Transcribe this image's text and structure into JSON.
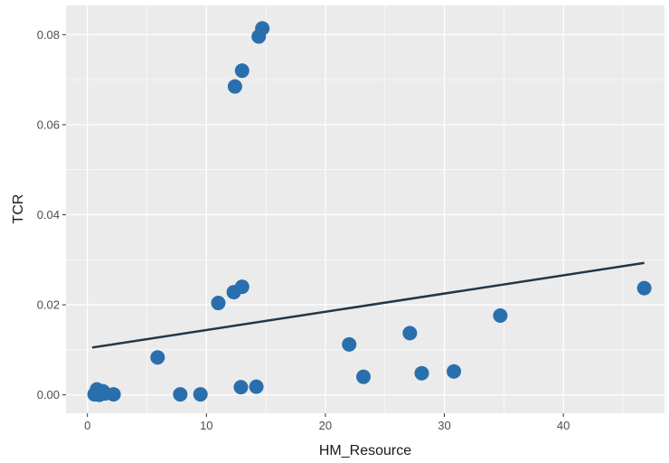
{
  "chart_data": {
    "type": "scatter",
    "title": "",
    "xlabel": "HM_Resource",
    "ylabel": "TCR",
    "xlim": [
      -1.8,
      48.5
    ],
    "ylim": [
      -0.0041,
      0.0865
    ],
    "x_ticks": [
      0,
      10,
      20,
      30,
      40
    ],
    "x_tick_labels": [
      "0",
      "10",
      "20",
      "30",
      "40"
    ],
    "y_ticks": [
      0,
      0.02,
      0.04,
      0.06,
      0.08
    ],
    "y_tick_labels": [
      "0.00",
      "0.02",
      "0.04",
      "0.06",
      "0.08"
    ],
    "grid": true,
    "legend": "none",
    "point_color": "#2a6fad",
    "line_color": "#233645",
    "panel_color": "#ebebeb",
    "points": [
      {
        "x": 0.6,
        "y": 0.0001
      },
      {
        "x": 0.8,
        "y": 0.0012
      },
      {
        "x": 1.0,
        "y": 0.0
      },
      {
        "x": 1.3,
        "y": 0.0008
      },
      {
        "x": 1.5,
        "y": 0.0003
      },
      {
        "x": 2.2,
        "y": 0.0001
      },
      {
        "x": 5.9,
        "y": 0.0083
      },
      {
        "x": 7.8,
        "y": 0.0001
      },
      {
        "x": 9.5,
        "y": 0.0001
      },
      {
        "x": 11.0,
        "y": 0.0204
      },
      {
        "x": 12.3,
        "y": 0.0228
      },
      {
        "x": 12.4,
        "y": 0.0685
      },
      {
        "x": 12.9,
        "y": 0.0017
      },
      {
        "x": 13.0,
        "y": 0.024
      },
      {
        "x": 13.0,
        "y": 0.072
      },
      {
        "x": 14.2,
        "y": 0.0018
      },
      {
        "x": 14.4,
        "y": 0.0796
      },
      {
        "x": 14.7,
        "y": 0.0814
      },
      {
        "x": 22.0,
        "y": 0.0112
      },
      {
        "x": 23.2,
        "y": 0.004
      },
      {
        "x": 27.1,
        "y": 0.0137
      },
      {
        "x": 28.1,
        "y": 0.0048
      },
      {
        "x": 30.8,
        "y": 0.0052
      },
      {
        "x": 34.7,
        "y": 0.0176
      },
      {
        "x": 46.8,
        "y": 0.0237
      }
    ],
    "trend_line": {
      "x": [
        0.4,
        46.8
      ],
      "y": [
        0.0105,
        0.0293
      ]
    }
  }
}
